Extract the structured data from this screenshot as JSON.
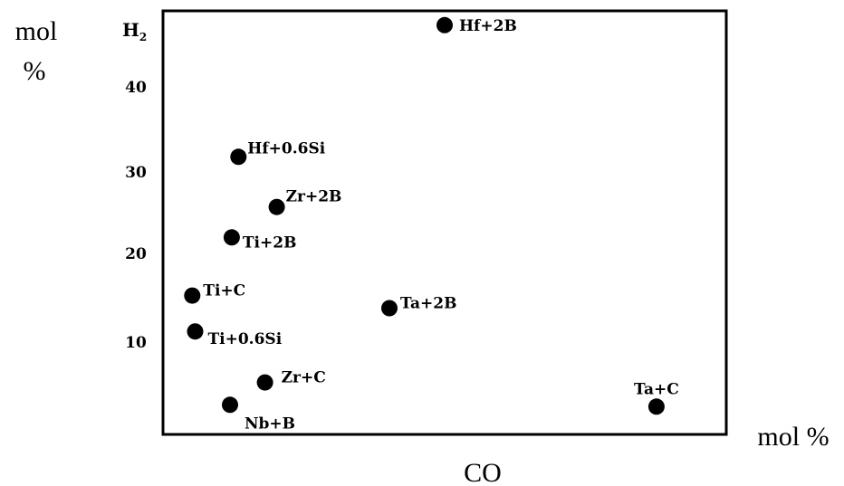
{
  "chart_data": {
    "type": "scatter",
    "title": "",
    "y_axis_name": "H",
    "y_axis_subscript": "2",
    "y_unit_line1": "mol",
    "y_unit_line2": "%",
    "x_unit": "mol %",
    "xlabel": "CO",
    "y_ticks": [
      "10",
      "20",
      "30",
      "40"
    ],
    "xlim": [
      0,
      1
    ],
    "ylim": [
      0,
      47.3
    ],
    "grid": false,
    "points": [
      {
        "label": "Hf+2B",
        "x": 0.5,
        "y": 45.7
      },
      {
        "label": "Hf+0.6Si",
        "x": 0.134,
        "y": 31.0
      },
      {
        "label": "Zr+2B",
        "x": 0.202,
        "y": 25.4
      },
      {
        "label": "Ti+2B",
        "x": 0.122,
        "y": 22.0
      },
      {
        "label": "Ti+C",
        "x": 0.052,
        "y": 15.5
      },
      {
        "label": "Ta+2B",
        "x": 0.402,
        "y": 14.1
      },
      {
        "label": "Ti+0.6Si",
        "x": 0.057,
        "y": 11.5
      },
      {
        "label": "Zr+C",
        "x": 0.181,
        "y": 5.8
      },
      {
        "label": "Nb+B",
        "x": 0.119,
        "y": 3.3
      },
      {
        "label": "Ta+C",
        "x": 0.876,
        "y": 3.1
      }
    ]
  }
}
